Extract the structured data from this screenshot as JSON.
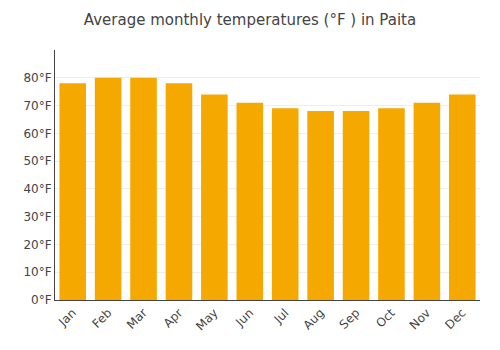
{
  "chart_data": {
    "type": "bar",
    "title": "Average monthly temperatures (°F ) in Paita",
    "categories": [
      "Jan",
      "Feb",
      "Mar",
      "Apr",
      "May",
      "Jun",
      "Jul",
      "Aug",
      "Sep",
      "Oct",
      "Nov",
      "Dec"
    ],
    "values": [
      78,
      80,
      80,
      78,
      74,
      71,
      69,
      68,
      68,
      69,
      71,
      74
    ],
    "color": "#F5A800",
    "ylim": [
      0,
      90
    ],
    "yticks": [
      {
        "value": 0,
        "label": "0°F"
      },
      {
        "value": 10,
        "label": "10°F"
      },
      {
        "value": 20,
        "label": "20°F"
      },
      {
        "value": 30,
        "label": "30°F"
      },
      {
        "value": 40,
        "label": "40°F"
      },
      {
        "value": 50,
        "label": "50°F"
      },
      {
        "value": 60,
        "label": "60°F"
      },
      {
        "value": 70,
        "label": "70°F"
      },
      {
        "value": 80,
        "label": "80°F"
      }
    ],
    "grid": true
  }
}
